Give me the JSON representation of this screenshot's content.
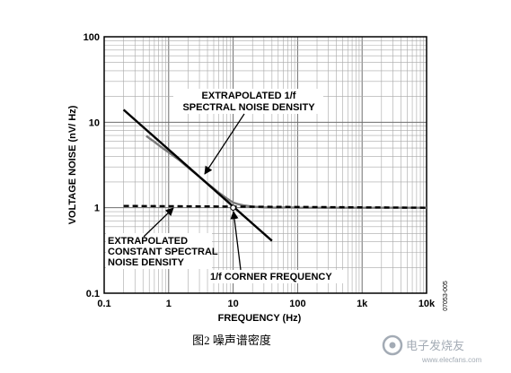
{
  "chart_data": {
    "type": "line",
    "title": "",
    "xlabel": "FREQUENCY (Hz)",
    "ylabel": "VOLTAGE NOISE (nV/ Hz)",
    "xscale": "log",
    "yscale": "log",
    "xlim": [
      0.1,
      10000
    ],
    "ylim": [
      0.1,
      100
    ],
    "grid": true,
    "legend": "none",
    "x_tick_labels": [
      "0.1",
      "1",
      "10",
      "100",
      "1k",
      "10k"
    ],
    "x_tick_values": [
      0.1,
      1,
      10,
      100,
      1000,
      10000
    ],
    "y_tick_labels": [
      "0.1",
      "1",
      "10",
      "100"
    ],
    "y_tick_values": [
      0.1,
      1,
      10,
      100
    ],
    "series": [
      {
        "style": "solid-gray",
        "x": [
          0.45,
          0.6,
          0.8,
          1,
          1.5,
          2,
          3,
          4,
          5,
          6,
          7,
          8,
          9,
          10,
          12,
          15,
          20,
          30,
          50,
          70,
          100,
          200,
          500,
          1000,
          2000,
          5000,
          10000
        ],
        "y": [
          6.9,
          5.9,
          5.0,
          4.45,
          3.55,
          2.95,
          2.3,
          1.92,
          1.68,
          1.5,
          1.38,
          1.28,
          1.21,
          1.15,
          1.1,
          1.06,
          1.03,
          1.01,
          1.0,
          1.01,
          1.0,
          1.0,
          1.0,
          1.0,
          1.0,
          1.0,
          1.0
        ]
      },
      {
        "style": "solid-black",
        "x": [
          0.2,
          40
        ],
        "y": [
          14.0,
          0.41
        ]
      },
      {
        "style": "dashed-black",
        "x": [
          0.2,
          10000
        ],
        "y": [
          1.05,
          1.0
        ]
      }
    ],
    "annotations": [
      {
        "lines": [
          "EXTRAPOLATED 1/f",
          "SPECTRAL NOISE DENSITY"
        ]
      },
      {
        "lines": [
          "EXTRAPOLATED",
          "CONSTANT SPECTRAL",
          "NOISE DENSITY"
        ]
      },
      {
        "lines": [
          "1/f CORNER FREQUENCY"
        ]
      }
    ],
    "corner_point": {
      "x": 10,
      "y": 1.0
    }
  },
  "figure_code": "07053-005",
  "caption": "图2 噪声谱密度",
  "watermark": {
    "text": "电子发烧友",
    "url": "www.elecfans.com"
  }
}
